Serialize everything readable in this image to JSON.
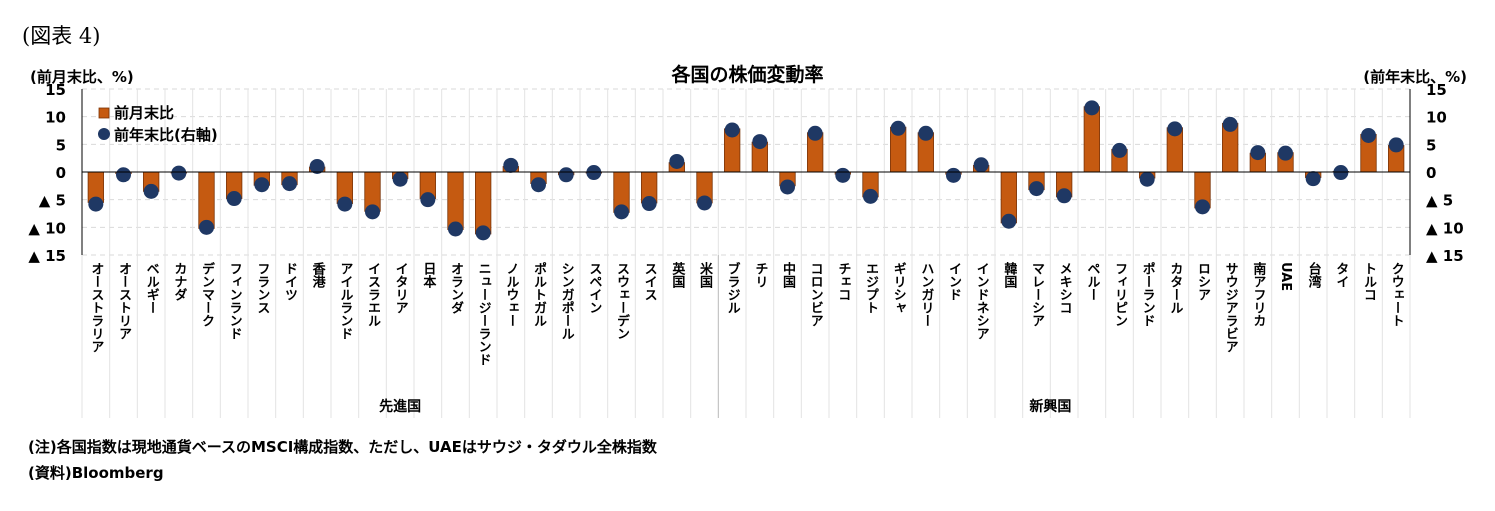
{
  "figure_label": "(図表 4)",
  "notes": {
    "note": "(注)各国指数は現地通貨ベースのMSCI構成指数、ただし、UAEはサウジ・タダウル全株指数",
    "source": "(資料)Bloomberg"
  },
  "colors": {
    "bar": "#c55a11",
    "bar_edge": "#7a3306",
    "dot": "#1f3864",
    "grid": "#d9d9d9"
  },
  "chart_data": {
    "type": "bar",
    "title": "各国の株価変動率",
    "ylabel_left": "(前月末比、%)",
    "ylabel_right": "(前年末比、%)",
    "ylim": [
      -15,
      15
    ],
    "y2lim": [
      -15,
      15
    ],
    "y_ticks": [
      {
        "value": 15,
        "label": "15"
      },
      {
        "value": 10,
        "label": "10"
      },
      {
        "value": 5,
        "label": "5"
      },
      {
        "value": 0,
        "label": "0"
      },
      {
        "value": -5,
        "label": "▲ 5"
      },
      {
        "value": -10,
        "label": "▲ 10"
      },
      {
        "value": -15,
        "label": "▲ 15"
      }
    ],
    "legend_placement": "top-left",
    "groups": [
      {
        "name": "先進国",
        "count": 23
      },
      {
        "name": "新興国",
        "count": 24
      }
    ],
    "categories": [
      "オーストラリア",
      "オーストリア",
      "ベルギー",
      "カナダ",
      "デンマーク",
      "フィンランド",
      "フランス",
      "ドイツ",
      "香港",
      "アイルランド",
      "イスラエル",
      "イタリア",
      "日本",
      "オランダ",
      "ニュージーランド",
      "ノルウェー",
      "ポルトガル",
      "シンガポール",
      "スペイン",
      "スウェーデン",
      "スイス",
      "英国",
      "米国",
      "ブラジル",
      "チリ",
      "中国",
      "コロンビア",
      "チェコ",
      "エジプト",
      "ギリシャ",
      "ハンガリー",
      "インド",
      "インドネシア",
      "韓国",
      "マレーシア",
      "メキシコ",
      "ペルー",
      "フィリピン",
      "ポーランド",
      "カタール",
      "ロシア",
      "サウジアラビア",
      "南アフリカ",
      "UAE",
      "台湾",
      "タイ",
      "トルコ",
      "クウェート"
    ],
    "series": [
      {
        "name": "前月末比",
        "kind": "bar",
        "axis": "left",
        "values": [
          -5.5,
          -0.3,
          -3.5,
          -0.2,
          -10.2,
          -4.8,
          -2.4,
          -2.3,
          0.9,
          -5.7,
          -7.1,
          -1.2,
          -4.8,
          -10.4,
          -11.2,
          1.0,
          -2.1,
          -0.5,
          -0.2,
          -7.3,
          -5.6,
          1.7,
          -5.6,
          7.8,
          5.4,
          -2.5,
          7.1,
          -0.4,
          -4.5,
          8.1,
          7.1,
          -0.4,
          1.2,
          -9.2,
          -3.2,
          -4.5,
          11.8,
          4.1,
          -1.1,
          8.0,
          -6.5,
          8.8,
          3.4,
          3.5,
          -1.0,
          0.1,
          6.8,
          4.8
        ]
      },
      {
        "name": "前年末比(右軸)",
        "kind": "dot",
        "axis": "right",
        "values": [
          -5.8,
          -0.5,
          -3.5,
          -0.2,
          -10.0,
          -4.8,
          -2.3,
          -2.1,
          1.0,
          -5.8,
          -7.2,
          -1.3,
          -5.0,
          -10.3,
          -11.0,
          1.2,
          -2.3,
          -0.5,
          -0.1,
          -7.2,
          -5.7,
          1.9,
          -5.6,
          7.6,
          5.5,
          -2.7,
          7.0,
          -0.6,
          -4.4,
          7.9,
          7.0,
          -0.6,
          1.3,
          -8.9,
          -3.0,
          -4.3,
          11.6,
          3.9,
          -1.3,
          7.8,
          -6.3,
          8.6,
          3.5,
          3.4,
          -1.2,
          -0.1,
          6.6,
          4.9
        ]
      }
    ]
  }
}
